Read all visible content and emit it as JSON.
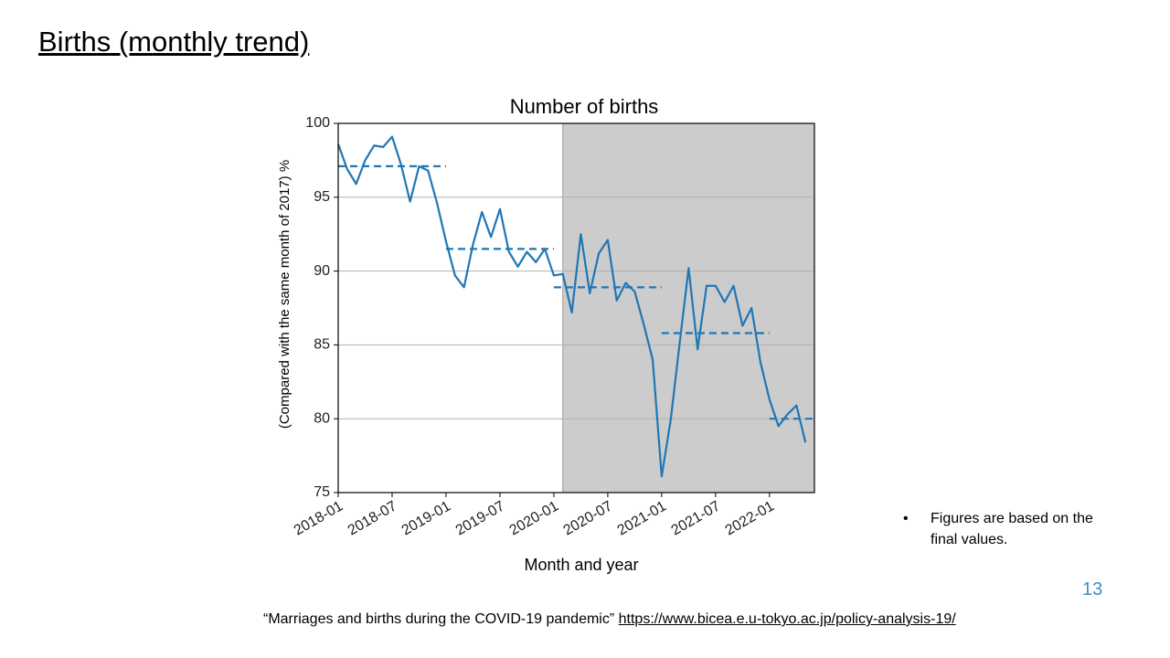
{
  "slide": {
    "title": "Births (monthly trend)",
    "note": "Figures are based on the final values.",
    "page_number": "13",
    "source": "“Marriages and births during the COVID-19 pandemic”",
    "source_url": "https://www.bicea.e.u-tokyo.ac.jp/policy-analysis-19/"
  },
  "chart_data": {
    "type": "line",
    "title": "Number of births",
    "x_label": "Month and year",
    "y_label": "(Compared with the same month of 2017) %",
    "x": [
      "2018-01",
      "2018-02",
      "2018-03",
      "2018-04",
      "2018-05",
      "2018-06",
      "2018-07",
      "2018-08",
      "2018-09",
      "2018-10",
      "2018-11",
      "2018-12",
      "2019-01",
      "2019-02",
      "2019-03",
      "2019-04",
      "2019-05",
      "2019-06",
      "2019-07",
      "2019-08",
      "2019-09",
      "2019-10",
      "2019-11",
      "2019-12",
      "2020-01",
      "2020-02",
      "2020-03",
      "2020-04",
      "2020-05",
      "2020-06",
      "2020-07",
      "2020-08",
      "2020-09",
      "2020-10",
      "2020-11",
      "2020-12",
      "2021-01",
      "2021-02",
      "2021-03",
      "2021-04",
      "2021-05",
      "2021-06",
      "2021-07",
      "2021-08",
      "2021-09",
      "2021-10",
      "2021-11",
      "2021-12",
      "2022-01",
      "2022-02",
      "2022-03",
      "2022-04",
      "2022-05"
    ],
    "values": [
      98.6,
      96.9,
      95.9,
      97.5,
      98.5,
      98.4,
      99.1,
      97.2,
      94.7,
      97.1,
      96.8,
      94.6,
      92.0,
      89.7,
      88.9,
      91.8,
      94.0,
      92.3,
      94.2,
      91.3,
      90.3,
      91.3,
      90.6,
      91.5,
      89.7,
      89.8,
      87.2,
      92.5,
      88.5,
      91.2,
      92.1,
      88.0,
      89.2,
      88.6,
      86.4,
      84.0,
      76.1,
      79.9,
      85.1,
      90.2,
      84.7,
      89.0,
      89.0,
      87.9,
      89.0,
      86.3,
      87.5,
      83.8,
      81.3,
      79.5,
      80.3,
      80.9,
      78.4
    ],
    "color": "#1f77b4",
    "annual_means": [
      {
        "start": "2018-01",
        "end": "2019-01",
        "value": 97.1
      },
      {
        "start": "2019-01",
        "end": "2020-01",
        "value": 91.5
      },
      {
        "start": "2020-01",
        "end": "2021-01",
        "value": 88.9
      },
      {
        "start": "2021-01",
        "end": "2022-01",
        "value": 85.8
      },
      {
        "start": "2022-01",
        "end": "2022-06",
        "value": 80.0
      }
    ],
    "shaded_from": "2020-02",
    "shade_color": "#cccccc",
    "xlim": [
      "2018-01",
      "2022-06"
    ],
    "xticks": [
      "2018-01",
      "2018-07",
      "2019-01",
      "2019-07",
      "2020-01",
      "2020-07",
      "2021-01",
      "2021-07",
      "2022-01"
    ],
    "ylim": [
      75,
      100
    ],
    "yticks": [
      75,
      80,
      85,
      90,
      95,
      100
    ],
    "grid": true
  }
}
